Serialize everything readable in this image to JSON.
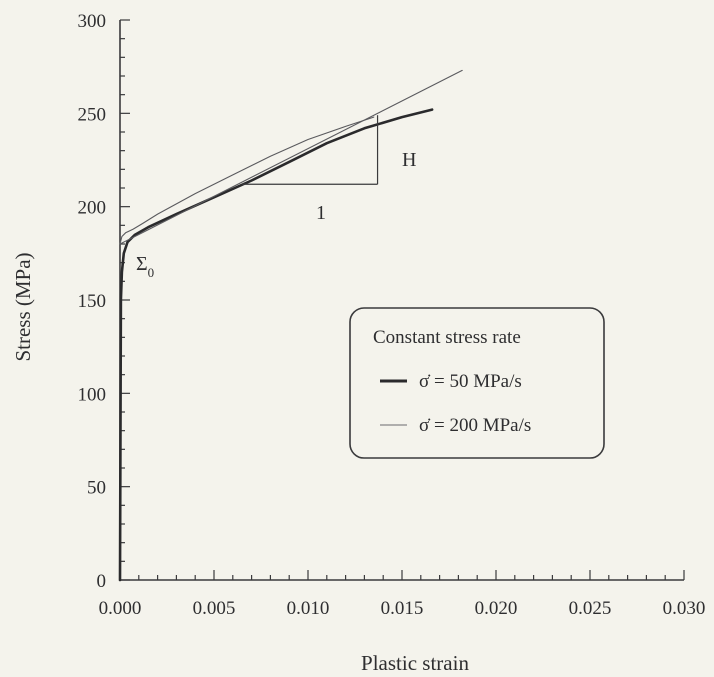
{
  "chart_data": {
    "type": "line",
    "xlabel": "Plastic strain",
    "ylabel": "Stress (MPa)",
    "xlim": [
      0,
      0.03
    ],
    "ylim": [
      0,
      300
    ],
    "xticks": [
      "0.000",
      "0.005",
      "0.010",
      "0.015",
      "0.020",
      "0.025",
      "0.030"
    ],
    "yticks": [
      "0",
      "50",
      "100",
      "150",
      "200",
      "250",
      "300"
    ],
    "grid": false,
    "legend": {
      "title": "Constant stress rate",
      "placement": "center-right",
      "entries": [
        "σ̇ = 50 MPa/s",
        "σ̇ = 200 MPa/s"
      ]
    },
    "series": [
      {
        "name": "σ̇ = 50 MPa/s",
        "line": "thick",
        "color": "#2a2a2c",
        "x": [
          0.0,
          5e-05,
          0.0001,
          0.0002,
          0.0004,
          0.0008,
          0.0015,
          0.003,
          0.005,
          0.007,
          0.009,
          0.011,
          0.013,
          0.015,
          0.0166
        ],
        "y": [
          0,
          150,
          165,
          175,
          181,
          185,
          189,
          196,
          205,
          214,
          224,
          234,
          242,
          248,
          252
        ]
      },
      {
        "name": "σ̇ = 200 MPa/s",
        "line": "thin",
        "color": "#5a5a5e",
        "x": [
          0.0,
          0.0001,
          0.0003,
          0.0007,
          0.0012,
          0.002,
          0.004,
          0.006,
          0.008,
          0.01,
          0.012,
          0.0135
        ],
        "y": [
          180,
          184,
          186,
          188,
          191,
          196,
          207,
          217,
          227,
          236,
          243,
          248
        ]
      },
      {
        "name": "",
        "role": "linear hardening fit",
        "line": "thin",
        "color": "#5a5a5e",
        "x": [
          0.0,
          0.0182
        ],
        "y": [
          180,
          273
        ]
      }
    ],
    "annotations": [
      {
        "text": "H",
        "role": "slope-triangle-height"
      },
      {
        "text": "1",
        "role": "slope-triangle-base"
      },
      {
        "text": "Σ",
        "subscript": "0",
        "role": "yield-stress"
      }
    ],
    "slope_triangle": {
      "x": [
        0.0065,
        0.0137
      ],
      "y": [
        212,
        249
      ]
    }
  }
}
